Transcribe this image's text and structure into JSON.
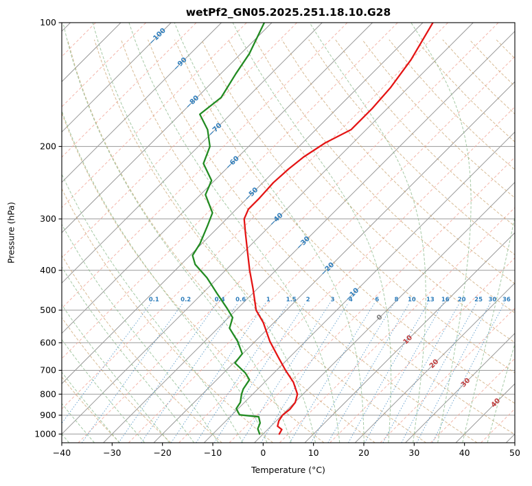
{
  "chart_data": {
    "type": "skewt-log-p",
    "title": "wetPf2_GN05.2025.251.18.10.G28",
    "xlabel": "Temperature (°C)",
    "ylabel": "Pressure (hPa)",
    "skew_deg": 45,
    "x_axis": {
      "min": -40,
      "max": 50,
      "tick_values": [
        -40,
        -30,
        -20,
        -10,
        0,
        10,
        20,
        30,
        40,
        50
      ],
      "tick_labels": [
        "−40",
        "−30",
        "−20",
        "−10",
        "0",
        "10",
        "20",
        "30",
        "40",
        "50"
      ]
    },
    "y_axis": {
      "min": 100,
      "max": 1050,
      "scale": "log",
      "tick_values": [
        100,
        200,
        300,
        400,
        500,
        600,
        700,
        800,
        900,
        1000
      ],
      "tick_labels": [
        "100",
        "200",
        "300",
        "400",
        "500",
        "600",
        "700",
        "800",
        "900",
        "1000"
      ]
    },
    "series": [
      {
        "name": "temperature",
        "points": [
          [
            100,
            -48.0
          ],
          [
            123,
            -45.0
          ],
          [
            144,
            -43.5
          ],
          [
            162,
            -43.0
          ],
          [
            182,
            -43.0
          ],
          [
            196,
            -45.5
          ],
          [
            212,
            -47.0
          ],
          [
            227,
            -47.6
          ],
          [
            245,
            -47.9
          ],
          [
            268,
            -47.6
          ],
          [
            284,
            -47.6
          ],
          [
            300,
            -46.5
          ],
          [
            325,
            -43.4
          ],
          [
            357,
            -39.7
          ],
          [
            400,
            -35.2
          ],
          [
            443,
            -30.9
          ],
          [
            500,
            -26.0
          ],
          [
            536,
            -22.1
          ],
          [
            595,
            -17.1
          ],
          [
            650,
            -12.3
          ],
          [
            700,
            -8.2
          ],
          [
            748,
            -4.3
          ],
          [
            800,
            -1.1
          ],
          [
            838,
            0.1
          ],
          [
            871,
            0.4
          ],
          [
            900,
            0.1
          ],
          [
            929,
            0.5
          ],
          [
            957,
            1.3
          ],
          [
            975,
            2.8
          ],
          [
            1000,
            3.2
          ]
        ]
      },
      {
        "name": "dewpoint",
        "points": [
          [
            100,
            -81.5
          ],
          [
            119,
            -78.3
          ],
          [
            133,
            -77.0
          ],
          [
            152,
            -75.2
          ],
          [
            167,
            -76.1
          ],
          [
            182,
            -71.5
          ],
          [
            200,
            -67.7
          ],
          [
            220,
            -65.6
          ],
          [
            242,
            -60.6
          ],
          [
            262,
            -59.0
          ],
          [
            290,
            -54.0
          ],
          [
            312,
            -52.4
          ],
          [
            344,
            -50.4
          ],
          [
            368,
            -49.5
          ],
          [
            387,
            -47.2
          ],
          [
            417,
            -42.2
          ],
          [
            456,
            -37.0
          ],
          [
            496,
            -32.0
          ],
          [
            521,
            -29.2
          ],
          [
            553,
            -27.7
          ],
          [
            595,
            -23.5
          ],
          [
            638,
            -20.1
          ],
          [
            672,
            -19.7
          ],
          [
            710,
            -15.7
          ],
          [
            738,
            -13.5
          ],
          [
            777,
            -12.9
          ],
          [
            800,
            -12.2
          ],
          [
            838,
            -10.8
          ],
          [
            867,
            -10.4
          ],
          [
            898,
            -8.5
          ],
          [
            908,
            -4.3
          ],
          [
            940,
            -2.8
          ],
          [
            971,
            -2.1
          ],
          [
            1000,
            -0.7
          ]
        ]
      }
    ],
    "isotherms": {
      "start": -120,
      "end": 50,
      "step": 10,
      "minor_offset": 5
    },
    "isotherm_labels": [
      {
        "t": -100,
        "p": 108,
        "label": "−100"
      },
      {
        "t": -90,
        "p": 126,
        "label": "−90"
      },
      {
        "t": -80,
        "p": 156,
        "label": "−80"
      },
      {
        "t": -70,
        "p": 182,
        "label": "−70"
      },
      {
        "t": -60,
        "p": 219,
        "label": "−60"
      },
      {
        "t": -50,
        "p": 261,
        "label": "−50"
      },
      {
        "t": -40,
        "p": 301,
        "label": "−40"
      },
      {
        "t": -30,
        "p": 343,
        "label": "−30"
      },
      {
        "t": -20,
        "p": 397,
        "label": "−20"
      },
      {
        "t": -10,
        "p": 458,
        "label": "−10"
      },
      {
        "t": 0,
        "p": 521,
        "label": "0"
      },
      {
        "t": 10,
        "p": 590,
        "label": "10"
      },
      {
        "t": 20,
        "p": 675,
        "label": "20"
      },
      {
        "t": 30,
        "p": 750,
        "label": "30"
      },
      {
        "t": 40,
        "p": 840,
        "label": "40"
      }
    ],
    "mixing_ratio": {
      "values": [
        0.1,
        0.2,
        0.4,
        0.6,
        1,
        1.5,
        2,
        3,
        4,
        6,
        8,
        10,
        13,
        16,
        20,
        25,
        30,
        36
      ],
      "labels": [
        "0.1",
        "0.2",
        "0.4",
        "0.6",
        "1",
        "1.5",
        "2",
        "3",
        "4",
        "6",
        "8",
        "10",
        "13",
        "16",
        "20",
        "25",
        "30",
        "36"
      ],
      "label_pressure": 470,
      "top_pressure": 480,
      "bottom_pressure": 1050
    },
    "dry_adiabats": {
      "theta_start_K": 243,
      "theta_end_K": 473,
      "step_K": 10
    },
    "moist_adiabats": {
      "t_start_C": -40,
      "t_end_C": 45,
      "step_C": 5
    },
    "colors": {
      "temperature": "#e41414",
      "dewpoint": "#228b22",
      "isotherm": "#999999",
      "isotherm_minor": "#f2a294",
      "pressure_grid": "#999999",
      "dry_adiabat": "#c9a470",
      "moist_adiabat": "#8fbc8f",
      "mixing_ratio": "#4a90c4",
      "label_negative": "#2f7ebc",
      "label_zero": "#7d7d7d",
      "label_positive": "#c24040",
      "axis": "#000000"
    }
  }
}
